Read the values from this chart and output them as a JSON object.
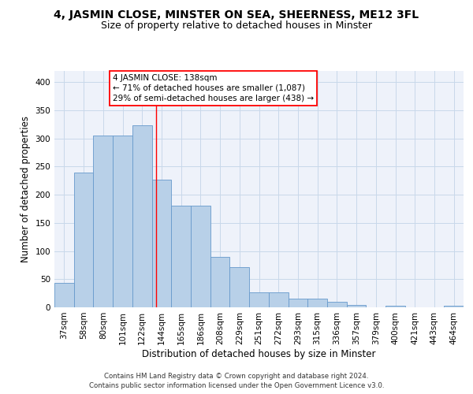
{
  "title": "4, JASMIN CLOSE, MINSTER ON SEA, SHEERNESS, ME12 3FL",
  "subtitle": "Size of property relative to detached houses in Minster",
  "xlabel": "Distribution of detached houses by size in Minster",
  "ylabel": "Number of detached properties",
  "footer_line1": "Contains HM Land Registry data © Crown copyright and database right 2024.",
  "footer_line2": "Contains public sector information licensed under the Open Government Licence v3.0.",
  "categories": [
    "37sqm",
    "58sqm",
    "80sqm",
    "101sqm",
    "122sqm",
    "144sqm",
    "165sqm",
    "186sqm",
    "208sqm",
    "229sqm",
    "251sqm",
    "272sqm",
    "293sqm",
    "315sqm",
    "336sqm",
    "357sqm",
    "379sqm",
    "400sqm",
    "421sqm",
    "443sqm",
    "464sqm"
  ],
  "values": [
    43,
    240,
    305,
    305,
    323,
    227,
    181,
    181,
    90,
    72,
    26,
    26,
    16,
    16,
    10,
    4,
    0,
    3,
    0,
    0,
    3
  ],
  "bar_color": "#b8d0e8",
  "bar_edge_color": "#6699cc",
  "property_line_x": 4.72,
  "annotation_line1": "4 JASMIN CLOSE: 138sqm",
  "annotation_line2": "← 71% of detached houses are smaller (1,087)",
  "annotation_line3": "29% of semi-detached houses are larger (438) →",
  "ylim": [
    0,
    420
  ],
  "yticks": [
    0,
    50,
    100,
    150,
    200,
    250,
    300,
    350,
    400
  ],
  "grid_color": "#c8d8ea",
  "background_color": "#eef2fa",
  "title_fontsize": 10,
  "subtitle_fontsize": 9,
  "tick_fontsize": 7.5,
  "ylabel_fontsize": 8.5,
  "xlabel_fontsize": 8.5,
  "annotation_fontsize": 7.5,
  "footer_fontsize": 6.2
}
